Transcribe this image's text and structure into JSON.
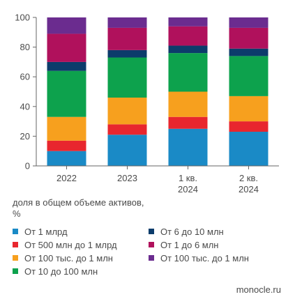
{
  "chart_data": {
    "type": "bar",
    "stacked": true,
    "categories": [
      [
        "2022"
      ],
      [
        "2023"
      ],
      [
        "1 кв.",
        "2024"
      ],
      [
        "2 кв.",
        "2024"
      ]
    ],
    "ylim": [
      0,
      100
    ],
    "yticks": [
      0,
      20,
      40,
      60,
      80,
      100
    ],
    "ylabel": "доля в общем объеме активов, %",
    "grid": false,
    "legend_position": "bottom",
    "series": [
      {
        "name": "От 1 млрд",
        "color": "#1a8ac6",
        "values": [
          10,
          21,
          25,
          23
        ]
      },
      {
        "name": "От 500 млн до 1 млрд",
        "color": "#e8262e",
        "values": [
          7,
          7,
          8,
          7
        ]
      },
      {
        "name": "От 100 тыс. до 1 млн",
        "color": "#f7a01e",
        "values": [
          16,
          18,
          17,
          17
        ]
      },
      {
        "name": "От 10 до 100 млн",
        "color": "#0da24d",
        "values": [
          31,
          27,
          26,
          27
        ]
      },
      {
        "name": "От 6 до 10 млн",
        "color": "#0c3c6b",
        "values": [
          6,
          5,
          5,
          5
        ]
      },
      {
        "name": "От 1 до 6 млн",
        "color": "#b0115c",
        "values": [
          19,
          15,
          13,
          14
        ]
      },
      {
        "name": "От 100 тыс. до 1 млн",
        "color": "#6b2c8f",
        "values": [
          11,
          7,
          6,
          7
        ]
      }
    ]
  },
  "ylabel_lines": [
    "доля в общем объеме активов,",
    "%"
  ],
  "legend": [
    {
      "label": "От 1 млрд",
      "color": "#1a8ac6"
    },
    {
      "label": "От 6 до 10 млн",
      "color": "#0c3c6b"
    },
    {
      "label": "От 500 млн до 1 млрд",
      "color": "#e8262e"
    },
    {
      "label": "От 1 до 6 млн",
      "color": "#b0115c"
    },
    {
      "label": "От 100 тыс. до 1 млн",
      "color": "#f7a01e"
    },
    {
      "label": "От 100 тыс. до 1 млн",
      "color": "#6b2c8f"
    },
    {
      "label": "От 10 до 100 млн",
      "color": "#0da24d"
    }
  ],
  "source": "monocle.ru"
}
